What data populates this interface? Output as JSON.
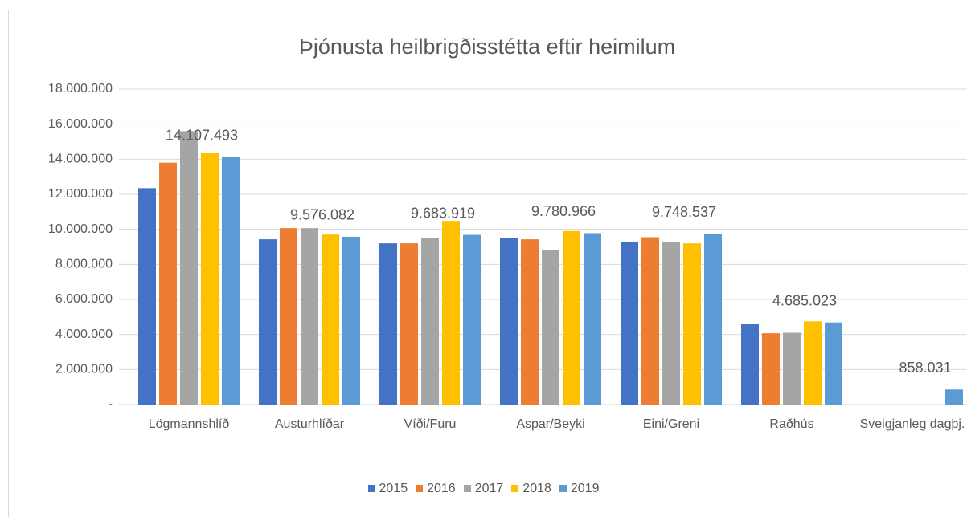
{
  "chart_data": {
    "type": "bar",
    "title": "Þjónusta heilbrigðisstétta eftir heimilum",
    "categories": [
      "Lögmannshlíð",
      "Austurhlíðar",
      "Víði/Furu",
      "Aspar/Beyki",
      "Eini/Greni",
      "Raðhús",
      "Sveigjanleg dagþj."
    ],
    "series": [
      {
        "name": "2015",
        "color": "#4472c4",
        "values": [
          12350000,
          9430000,
          9200000,
          9500000,
          9300000,
          4580000,
          null
        ]
      },
      {
        "name": "2016",
        "color": "#ed7d31",
        "values": [
          13800000,
          10070000,
          9200000,
          9430000,
          9550000,
          4070000,
          null
        ]
      },
      {
        "name": "2017",
        "color": "#a5a5a5",
        "values": [
          15600000,
          10070000,
          9500000,
          8800000,
          9300000,
          4100000,
          null
        ]
      },
      {
        "name": "2018",
        "color": "#ffc000",
        "values": [
          14370000,
          9700000,
          10480000,
          9900000,
          9200000,
          4750000,
          null
        ]
      },
      {
        "name": "2019",
        "color": "#5b9bd5",
        "values": [
          14107493,
          9576082,
          9683919,
          9780966,
          9748537,
          4685023,
          858031
        ],
        "value_labels": [
          "14.107.493",
          "9.576.082",
          "9.683.919",
          "9.780.966",
          "9.748.537",
          "4.685.023",
          "858.031"
        ]
      }
    ],
    "ylim": [
      0,
      18000000
    ],
    "yticks": [
      {
        "value": 0,
        "label": "-"
      },
      {
        "value": 2000000,
        "label": "2.000.000"
      },
      {
        "value": 4000000,
        "label": "4.000.000"
      },
      {
        "value": 6000000,
        "label": "6.000.000"
      },
      {
        "value": 8000000,
        "label": "8.000.000"
      },
      {
        "value": 10000000,
        "label": "10.000.000"
      },
      {
        "value": 12000000,
        "label": "12.000.000"
      },
      {
        "value": 14000000,
        "label": "14.000.000"
      },
      {
        "value": 16000000,
        "label": "16.000.000"
      },
      {
        "value": 18000000,
        "label": "18.000.000"
      }
    ],
    "grid": true,
    "legend": "bottom"
  }
}
